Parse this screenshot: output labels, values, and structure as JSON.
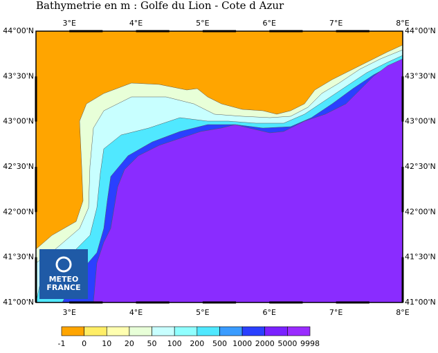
{
  "title": "Bathymetrie en m : Golfe du Lion - Cote d Azur",
  "lon_labels": [
    "3°E",
    "4°E",
    "5°E",
    "6°E",
    "7°E",
    "8°E"
  ],
  "lat_labels": [
    "44°00'N",
    "43°30'N",
    "43°00'N",
    "42°30'N",
    "42°00'N",
    "41°30'N",
    "41°00'N"
  ],
  "legend": {
    "labels": [
      -1,
      0,
      10,
      20,
      50,
      100,
      200,
      500,
      1000,
      2000,
      5000,
      9998
    ],
    "colors": [
      "#ffa500",
      "#ffee66",
      "#ffffb0",
      "#e8ffd8",
      "#c8ffff",
      "#90ffff",
      "#50e8ff",
      "#3a9cff",
      "#2a40ff",
      "#7a22ff",
      "#9a2cff"
    ]
  },
  "logo": {
    "line1": "METEO",
    "line2": "FRANCE"
  }
}
